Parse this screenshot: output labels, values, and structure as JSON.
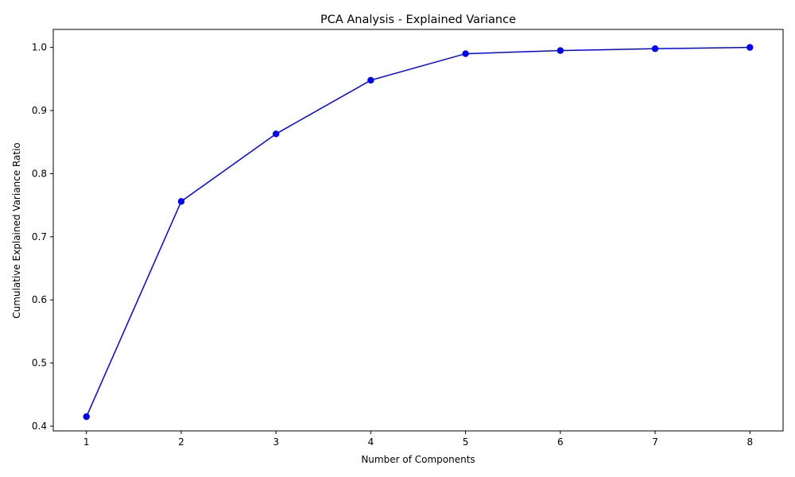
{
  "chart_data": {
    "type": "line",
    "title": "PCA Analysis - Explained Variance",
    "xlabel": "Number of Components",
    "ylabel": "Cumulative Explained Variance Ratio",
    "x": [
      1,
      2,
      3,
      4,
      5,
      6,
      7,
      8
    ],
    "series": [
      {
        "name": "",
        "values": [
          0.415,
          0.756,
          0.863,
          0.948,
          0.99,
          0.995,
          0.998,
          1.0
        ],
        "color": "#0000ff",
        "marker": "circle"
      }
    ],
    "xlim": [
      0.65,
      8.35
    ],
    "ylim": [
      0.3925,
      1.0285
    ],
    "xticks": [
      1,
      2,
      3,
      4,
      5,
      6,
      7,
      8
    ],
    "yticks": [
      0.4,
      0.5,
      0.6,
      0.7,
      0.8,
      0.9,
      1.0
    ],
    "xtick_labels": [
      "1",
      "2",
      "3",
      "4",
      "5",
      "6",
      "7",
      "8"
    ],
    "ytick_labels": [
      "0.4",
      "0.5",
      "0.6",
      "0.7",
      "0.8",
      "0.9",
      "1.0"
    ],
    "grid": false,
    "legend": "none"
  }
}
